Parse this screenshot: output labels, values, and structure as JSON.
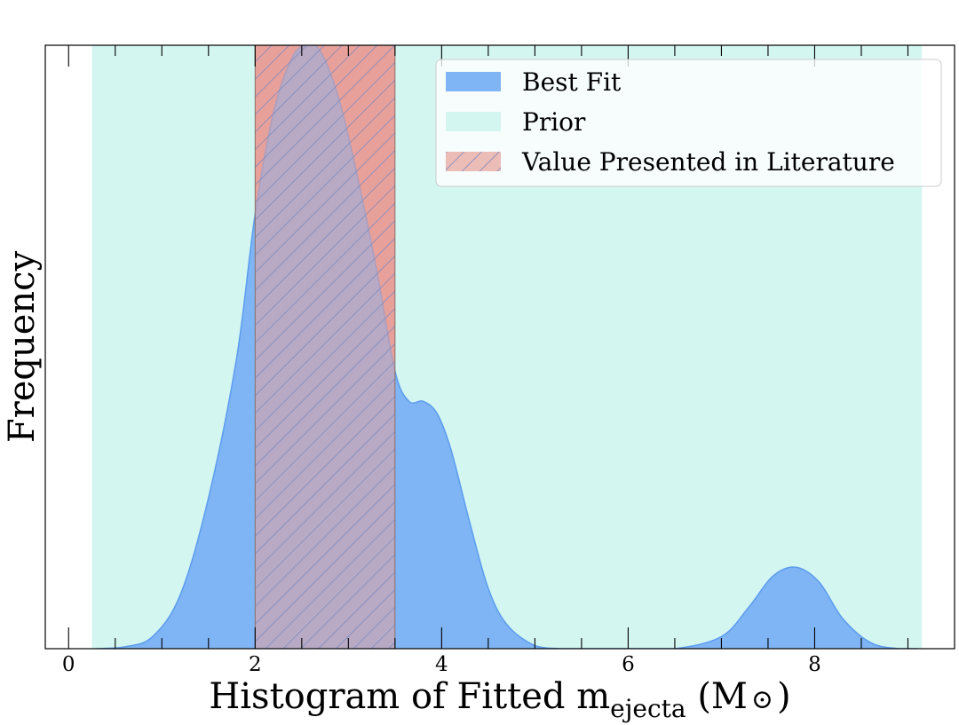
{
  "chart_data": {
    "type": "area",
    "xlabel": {
      "prefix": "Histogram of Fitted m",
      "subscript": "ejecta",
      "unit_open": " (M",
      "unit_symbol": "⊙",
      "unit_close": ")"
    },
    "ylabel": "Frequency",
    "xlim": [
      -0.25,
      9.5
    ],
    "ylim": [
      0,
      1.0
    ],
    "xticks": [
      0,
      2,
      4,
      6,
      8
    ],
    "xtick_labels": [
      "0",
      "2",
      "4",
      "6",
      "8"
    ],
    "grid": false,
    "legend_position": "top-right",
    "series": [
      {
        "name": "Best Fit",
        "kind": "kde",
        "color": "#7fb5f5",
        "edge_color": "#5c9cee",
        "x": [
          0.3,
          0.6,
          0.9,
          1.2,
          1.5,
          1.8,
          2.0,
          2.2,
          2.4,
          2.55,
          2.7,
          2.9,
          3.1,
          3.3,
          3.5,
          3.65,
          3.8,
          3.95,
          4.1,
          4.3,
          4.5,
          4.7,
          5.0,
          5.3,
          5.6,
          6.0,
          6.5,
          7.0,
          7.3,
          7.55,
          7.8,
          8.05,
          8.3,
          8.6,
          8.9,
          9.1
        ],
        "y": [
          0.0,
          0.003,
          0.02,
          0.09,
          0.25,
          0.48,
          0.72,
          0.89,
          0.98,
          1.0,
          0.99,
          0.91,
          0.78,
          0.63,
          0.46,
          0.41,
          0.41,
          0.39,
          0.33,
          0.21,
          0.1,
          0.04,
          0.005,
          0.0,
          0.0,
          0.0,
          0.0,
          0.02,
          0.07,
          0.12,
          0.135,
          0.11,
          0.05,
          0.01,
          0.0,
          0.0
        ]
      },
      {
        "name": "Prior",
        "kind": "span",
        "color": "#d4f6f1",
        "range": [
          0.25,
          9.15
        ]
      },
      {
        "name": "Value Presented in Literature",
        "kind": "hatched-span",
        "color": "#e8a09a",
        "hatch_color": "#7a8ac0",
        "range": [
          2.0,
          3.5
        ]
      }
    ]
  }
}
